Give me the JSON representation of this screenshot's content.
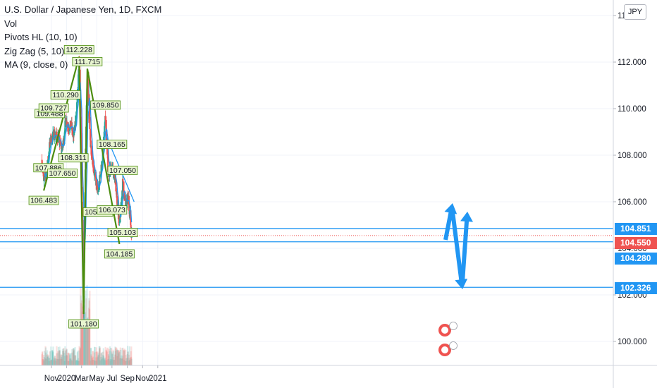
{
  "legend": {
    "title": "U.S. Dollar / Japanese Yen, 1D, FXCM",
    "vol": "Vol",
    "pivots": "Pivots HL (10, 10)",
    "zigzag": "Zig Zag (5, 10)",
    "ma": "MA (9, close, 0)"
  },
  "currency_badge": "JPY",
  "price_tags": [
    {
      "label": "104.851",
      "color": "#2196f3"
    },
    {
      "label": "104.550",
      "color": "#ef5350"
    },
    {
      "label": "104.280",
      "color": "#2196f3"
    },
    {
      "label": "102.326",
      "color": "#2196f3"
    }
  ],
  "chart_data": {
    "type": "candlestick",
    "symbol": "USDJPY",
    "interval": "1D",
    "ylim": [
      99.0,
      114.0
    ],
    "y_ticks": [
      "100.000",
      "102.000",
      "104.000",
      "106.000",
      "108.000",
      "110.000",
      "112.000",
      "114.000"
    ],
    "x_ticks": [
      "Nov",
      "2020",
      "Mar",
      "May",
      "Jul",
      "Sep",
      "Nov",
      "2021"
    ],
    "current_price": 104.55,
    "horizontal_levels": [
      104.851,
      104.28,
      102.326
    ],
    "pivot_labels": [
      {
        "date": "2019-10-01",
        "value": "106.483"
      },
      {
        "date": "2019-10-20",
        "value": "107.886"
      },
      {
        "date": "2019-10-25",
        "value": "109.488"
      },
      {
        "date": "2019-11-10",
        "value": "109.727"
      },
      {
        "date": "2019-12-15",
        "value": "107.650"
      },
      {
        "date": "2019-12-28",
        "value": "110.290"
      },
      {
        "date": "2020-01-28",
        "value": "108.311"
      },
      {
        "date": "2020-02-20",
        "value": "112.228"
      },
      {
        "date": "2020-03-09",
        "value": "101.180"
      },
      {
        "date": "2020-03-24",
        "value": "111.715"
      },
      {
        "date": "2020-05-06",
        "value": "105.987"
      },
      {
        "date": "2020-06-05",
        "value": "109.850"
      },
      {
        "date": "2020-07-01",
        "value": "108.165"
      },
      {
        "date": "2020-07-01",
        "value": "106.073"
      },
      {
        "date": "2020-07-31",
        "value": "104.185"
      },
      {
        "date": "2020-08-13",
        "value": "107.050"
      },
      {
        "date": "2020-08-13",
        "value": "105.103"
      }
    ],
    "zigzag": [
      {
        "date": "2019-10-01",
        "value": 106.483
      },
      {
        "date": "2020-02-20",
        "value": 112.228
      },
      {
        "date": "2020-03-09",
        "value": 101.18
      },
      {
        "date": "2020-03-24",
        "value": 111.715
      },
      {
        "date": "2020-07-31",
        "value": 104.185
      }
    ],
    "series": [
      {
        "dates": [
          "2019-09-24",
          "2019-10-01",
          "2019-10-15",
          "2019-10-25",
          "2019-11-10",
          "2019-11-25",
          "2019-12-15",
          "2019-12-28",
          "2020-01-10",
          "2020-01-20",
          "2020-01-28",
          "2020-02-10",
          "2020-02-20",
          "2020-02-28",
          "2020-03-09",
          "2020-03-15",
          "2020-03-24",
          "2020-04-05",
          "2020-04-20",
          "2020-05-06",
          "2020-05-20",
          "2020-06-05",
          "2020-06-15",
          "2020-07-01",
          "2020-07-15",
          "2020-07-31",
          "2020-08-13",
          "2020-08-25",
          "2020-09-05",
          "2020-09-18"
        ],
        "close": [
          107.8,
          106.8,
          107.5,
          108.5,
          108.9,
          108.8,
          108.2,
          109.5,
          109.2,
          109.3,
          108.7,
          109.9,
          111.9,
          108.5,
          101.8,
          106.5,
          111.3,
          108.6,
          107.3,
          106.4,
          107.5,
          109.6,
          107.2,
          107.5,
          106.9,
          104.9,
          106.8,
          105.8,
          106.2,
          104.55
        ]
      }
    ]
  }
}
